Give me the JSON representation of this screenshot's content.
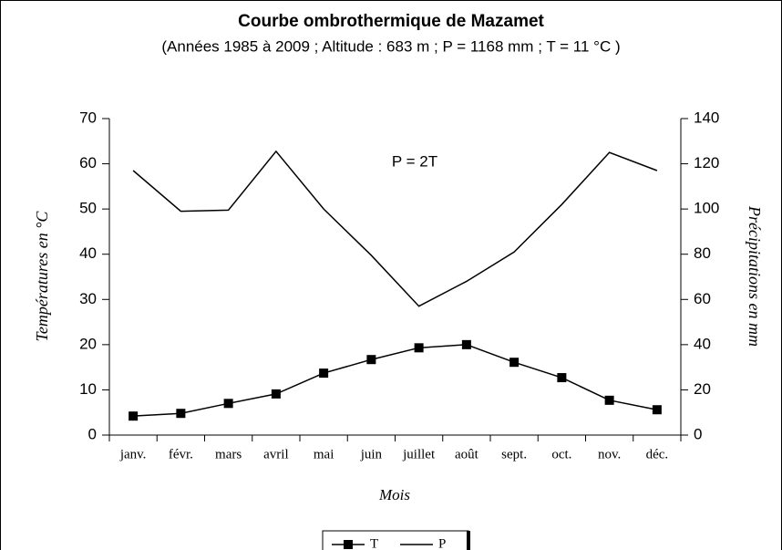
{
  "chart_data": {
    "type": "line",
    "title": "Courbe ombrothermique de Mazamet",
    "subtitle": "(Années 1985 à 2009 ; Altitude : 683 m ; P = 1168 mm ; T = 11 °C )",
    "annotation": "P = 2T",
    "x_label": "Mois",
    "y_label": "Températures en °C",
    "y2_label": "Précipitations en mm",
    "categories": [
      "janv.",
      "févr.",
      "mars",
      "avril",
      "mai",
      "juin",
      "juillet",
      "août",
      "sept.",
      "oct.",
      "nov.",
      "déc."
    ],
    "series": [
      {
        "name": "T",
        "color": "#000000",
        "marker": "square",
        "values": [
          4.2,
          4.8,
          7.0,
          9.1,
          13.7,
          16.7,
          19.3,
          20.0,
          16.1,
          12.7,
          7.7,
          5.6
        ]
      },
      {
        "name": "P",
        "color": "#000000",
        "axis": "y2",
        "values": [
          117,
          99,
          99.5,
          125.5,
          100,
          79.5,
          57,
          68,
          81,
          102,
          125,
          117
        ]
      }
    ],
    "ylim": [
      0,
      70
    ],
    "yticks": [
      0,
      10,
      20,
      30,
      40,
      50,
      60,
      70
    ],
    "y2lim": [
      0,
      140
    ],
    "y2ticks": [
      0,
      20,
      40,
      60,
      80,
      100,
      120,
      140
    ],
    "grid": false,
    "legend": "bottom"
  }
}
